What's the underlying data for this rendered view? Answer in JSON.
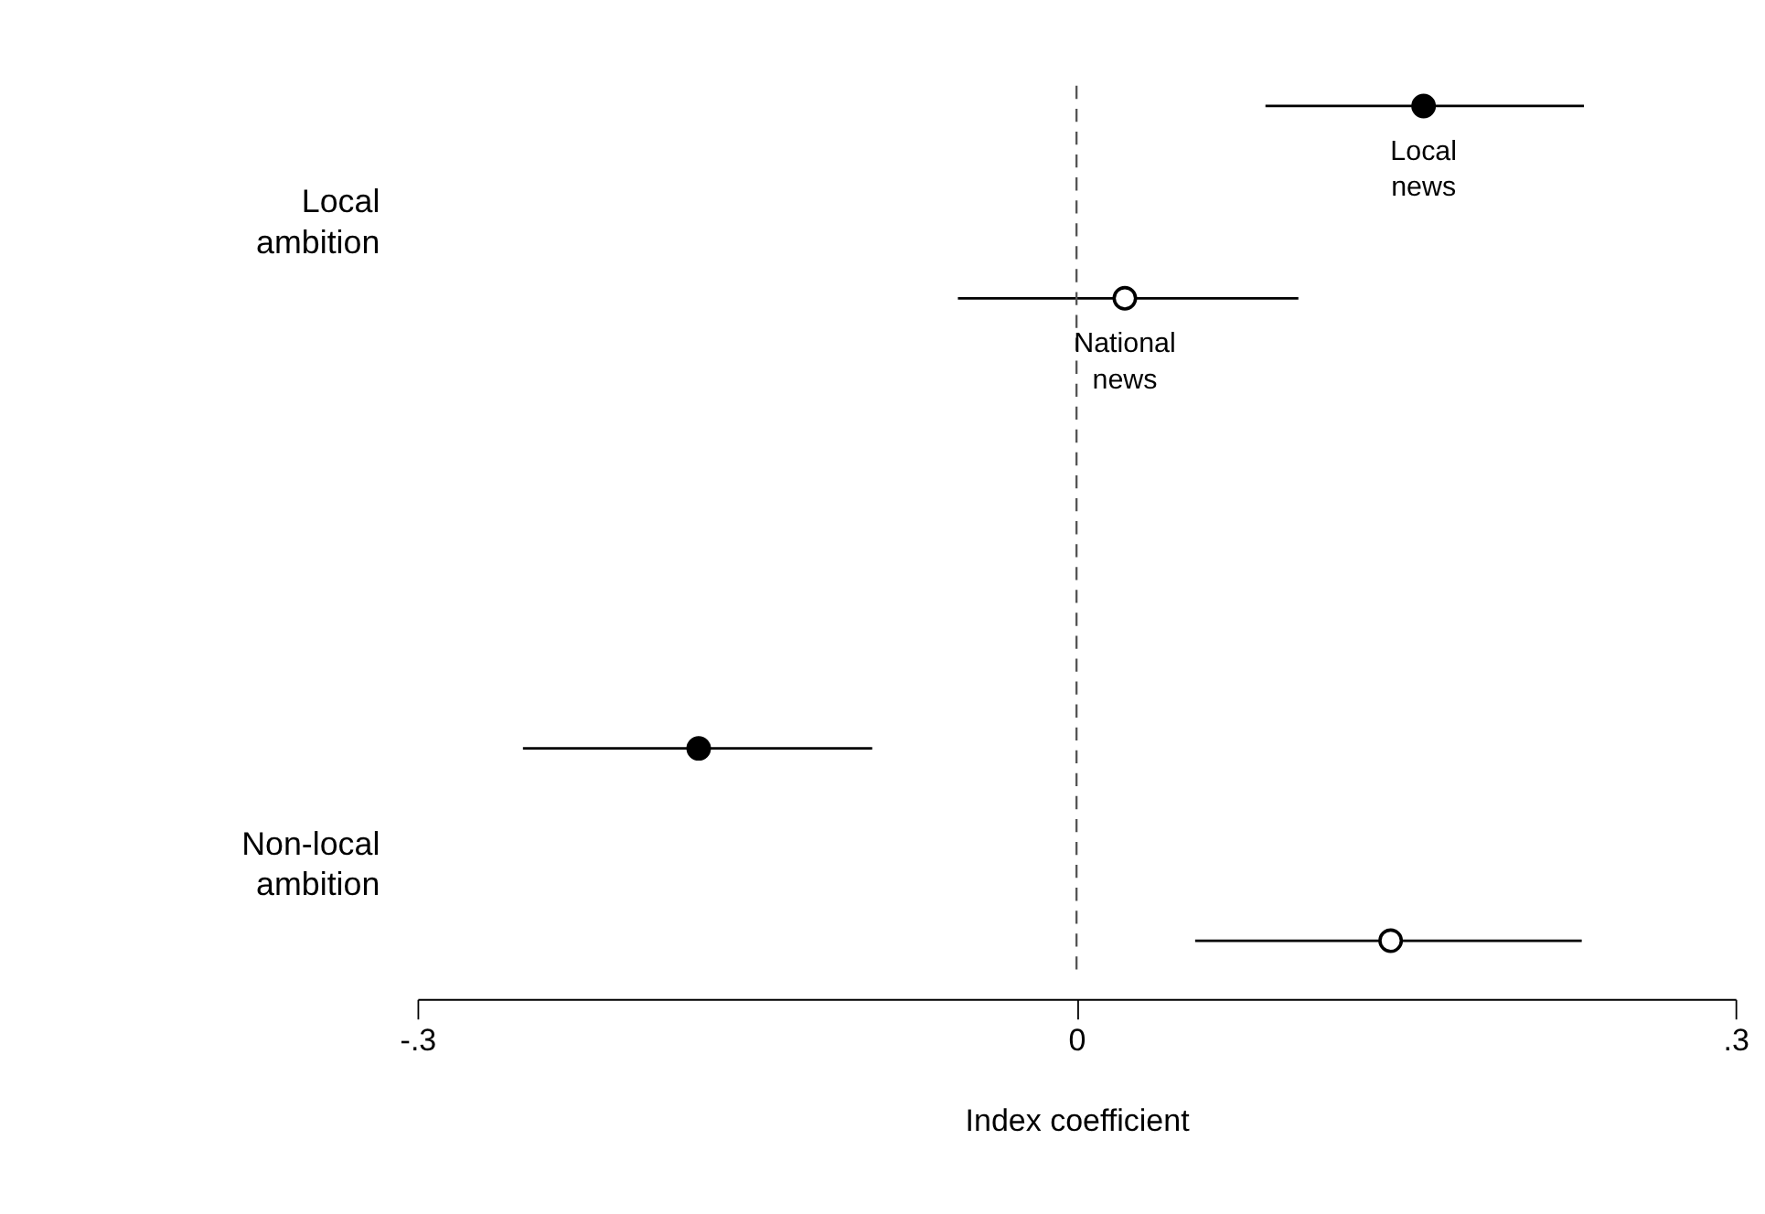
{
  "chart_data": {
    "type": "scatter",
    "orientation": "horizontal",
    "xlabel": "Index coefficient",
    "categories": [
      "Local ambition",
      "Non-local ambition"
    ],
    "series": [
      {
        "name": "Local news",
        "color": "#000000",
        "values": [
          0.158,
          -0.172
        ],
        "errors": [
          [
            0.086,
            0.231
          ],
          [
            -0.252,
            -0.093
          ]
        ]
      },
      {
        "name": "National news",
        "color": "#ffffff",
        "values": [
          0.022,
          0.143
        ],
        "errors": [
          [
            -0.054,
            0.101
          ],
          [
            0.054,
            0.23
          ]
        ]
      }
    ],
    "xlim": [
      -0.3,
      0.3
    ],
    "xticks": [
      {
        "value": -0.3,
        "label": "-.3"
      },
      0,
      {
        "value": 0.3,
        "label": ".3"
      }
    ],
    "ref_lines": [
      {
        "axis": "x",
        "value": 0,
        "line_style": "dashed",
        "color": "#555555"
      }
    ],
    "marker": "circle",
    "grid": false
  }
}
